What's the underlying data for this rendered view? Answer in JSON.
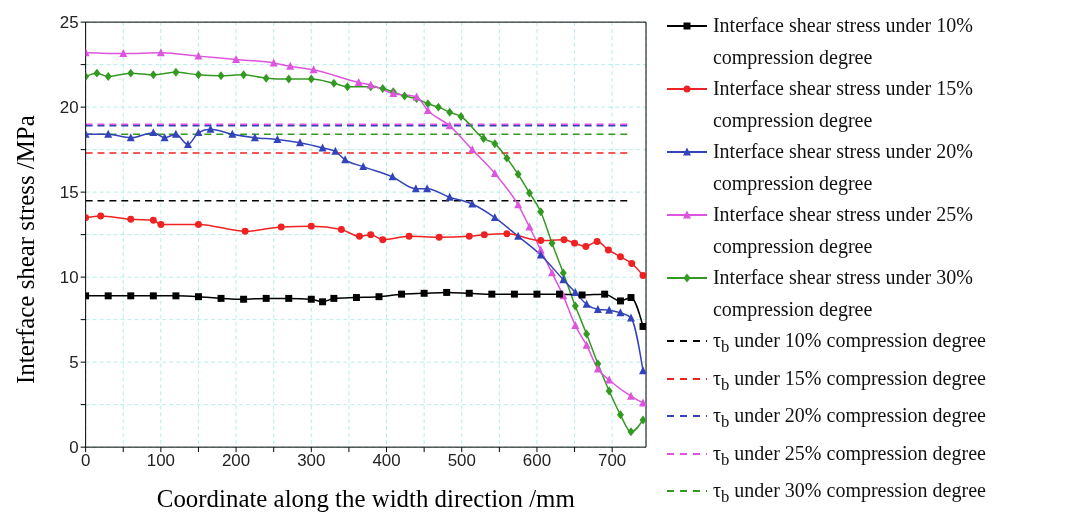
{
  "chart_data": {
    "type": "line",
    "xlabel": "Coordinate along the width direction /mm",
    "ylabel": "Interface shear stress /MPa",
    "xlim": [
      0,
      745
    ],
    "ylim": [
      0,
      25
    ],
    "xticks": [
      0,
      {
        "value": 50,
        "label": null
      },
      100,
      {
        "value": 150,
        "label": null
      },
      200,
      {
        "value": 250,
        "label": null
      },
      300,
      {
        "value": 350,
        "label": null
      },
      400,
      {
        "value": 450,
        "label": null
      },
      500,
      {
        "value": 550,
        "label": null
      },
      600,
      {
        "value": 650,
        "label": null
      },
      700
    ],
    "yticks": [
      0,
      {
        "value": 2.5,
        "label": null
      },
      5,
      {
        "value": 7.5,
        "label": null
      },
      10,
      {
        "value": 12.5,
        "label": null
      },
      15,
      {
        "value": 17.5,
        "label": null
      },
      20,
      {
        "value": 22.5,
        "label": null
      },
      25
    ],
    "grid": true,
    "legend": "right",
    "series": [
      {
        "name": "Interface shear stress under 10% compression degree",
        "color": "#000000",
        "marker": "square",
        "x": [
          0,
          30,
          60,
          90,
          120,
          150,
          180,
          210,
          240,
          270,
          300,
          315,
          330,
          360,
          390,
          420,
          450,
          480,
          510,
          540,
          570,
          600,
          630,
          660,
          690,
          711,
          725,
          741
        ],
        "values": [
          8.9,
          8.9,
          8.9,
          8.9,
          8.9,
          8.85,
          8.75,
          8.7,
          8.75,
          8.75,
          8.7,
          8.55,
          8.75,
          8.8,
          8.85,
          9.0,
          9.05,
          9.1,
          9.05,
          9.0,
          9.0,
          9.0,
          9.0,
          8.95,
          9.0,
          8.6,
          8.8,
          7.1
        ]
      },
      {
        "name": "Interface shear stress under 15% compression degree",
        "color": "#ee2222",
        "marker": "circle",
        "x": [
          0,
          20,
          60,
          90,
          100,
          150,
          212,
          260,
          300,
          340,
          364,
          379,
          395,
          430,
          470,
          510,
          530,
          560,
          605,
          636,
          650,
          665,
          680,
          695,
          711,
          726,
          741
        ],
        "values": [
          13.5,
          13.6,
          13.4,
          13.35,
          13.1,
          13.1,
          12.7,
          12.95,
          13.0,
          12.8,
          12.4,
          12.5,
          12.2,
          12.4,
          12.35,
          12.4,
          12.5,
          12.55,
          12.15,
          12.2,
          12.0,
          11.8,
          12.1,
          11.6,
          11.2,
          10.8,
          10.1
        ]
      },
      {
        "name": "Interface shear stress under 20% compression degree",
        "color": "#3344bb",
        "marker": "triangle",
        "x": [
          0,
          30,
          60,
          90,
          105,
          120,
          136,
          150,
          166,
          195,
          225,
          255,
          285,
          315,
          332,
          345,
          369,
          408,
          439,
          454,
          484,
          514,
          544,
          575,
          605,
          635,
          651,
          666,
          681,
          696,
          711,
          725,
          741
        ],
        "values": [
          18.4,
          18.4,
          18.2,
          18.5,
          18.2,
          18.4,
          17.8,
          18.5,
          18.7,
          18.4,
          18.2,
          18.1,
          17.9,
          17.6,
          17.4,
          16.9,
          16.5,
          15.9,
          15.2,
          15.2,
          14.7,
          14.3,
          13.5,
          12.4,
          11.3,
          9.85,
          9.1,
          8.4,
          8.1,
          8.05,
          7.9,
          7.6,
          4.5
        ]
      },
      {
        "name": "Interface shear stress under 25% compression degree",
        "color": "#dd55dd",
        "marker": "triangle",
        "x": [
          0,
          50,
          100,
          150,
          200,
          250,
          272,
          303,
          363,
          379,
          409,
          440,
          455,
          484,
          514,
          544,
          575,
          590,
          605,
          620,
          635,
          651,
          666,
          681,
          696,
          725,
          741
        ],
        "values": [
          23.2,
          23.15,
          23.2,
          23.0,
          22.8,
          22.6,
          22.4,
          22.2,
          21.45,
          21.3,
          20.8,
          20.6,
          19.8,
          18.9,
          17.5,
          16.1,
          14.25,
          12.95,
          11.6,
          10.25,
          8.9,
          7.15,
          6.0,
          4.6,
          3.95,
          3.0,
          2.6
        ]
      },
      {
        "name": "Interface shear stress under 30% compression degree",
        "color": "#339922",
        "marker": "diamond",
        "x": [
          0,
          15,
          30,
          60,
          90,
          120,
          150,
          180,
          210,
          240,
          270,
          300,
          330,
          348,
          379,
          395,
          409,
          424,
          440,
          455,
          469,
          484,
          499,
          529,
          544,
          560,
          575,
          590,
          605,
          620,
          635,
          651,
          666,
          681,
          696,
          711,
          725,
          741
        ],
        "values": [
          21.8,
          22.0,
          21.8,
          22.0,
          21.9,
          22.05,
          21.9,
          21.85,
          21.9,
          21.7,
          21.65,
          21.65,
          21.4,
          21.2,
          21.2,
          21.1,
          20.9,
          20.65,
          20.5,
          20.2,
          20.0,
          19.7,
          19.45,
          18.15,
          17.85,
          17.0,
          16.05,
          14.95,
          13.85,
          12.0,
          10.25,
          8.3,
          6.65,
          4.9,
          3.3,
          1.9,
          0.9,
          1.6
        ]
      },
      {
        "name": "τ$_{b}$  under 10% compression degree",
        "color": "#000000",
        "marker": "none",
        "line_style": "dashed",
        "x": [
          0,
          720
        ],
        "values": [
          14.5,
          14.5
        ]
      },
      {
        "name": "τ$_{b}$  under 15% compression degree",
        "color": "#ee2222",
        "marker": "none",
        "line_style": "dashed",
        "x": [
          0,
          720
        ],
        "values": [
          17.3,
          17.3
        ]
      },
      {
        "name": "τ$_{b}$  under 20% compression degree",
        "color": "#3344bb",
        "marker": "none",
        "line_style": "dashed",
        "x": [
          0,
          720
        ],
        "values": [
          18.9,
          18.9
        ]
      },
      {
        "name": "τ$_{b}$  under 25% compression degree",
        "color": "#dd55dd",
        "marker": "none",
        "line_style": "dashed",
        "x": [
          0,
          720
        ],
        "values": [
          19.0,
          19.0
        ]
      },
      {
        "name": "τ$_{b}$  under 30% compression degree",
        "color": "#339922",
        "marker": "none",
        "line_style": "dashed",
        "x": [
          0,
          720
        ],
        "values": [
          18.4,
          18.4
        ]
      }
    ]
  }
}
